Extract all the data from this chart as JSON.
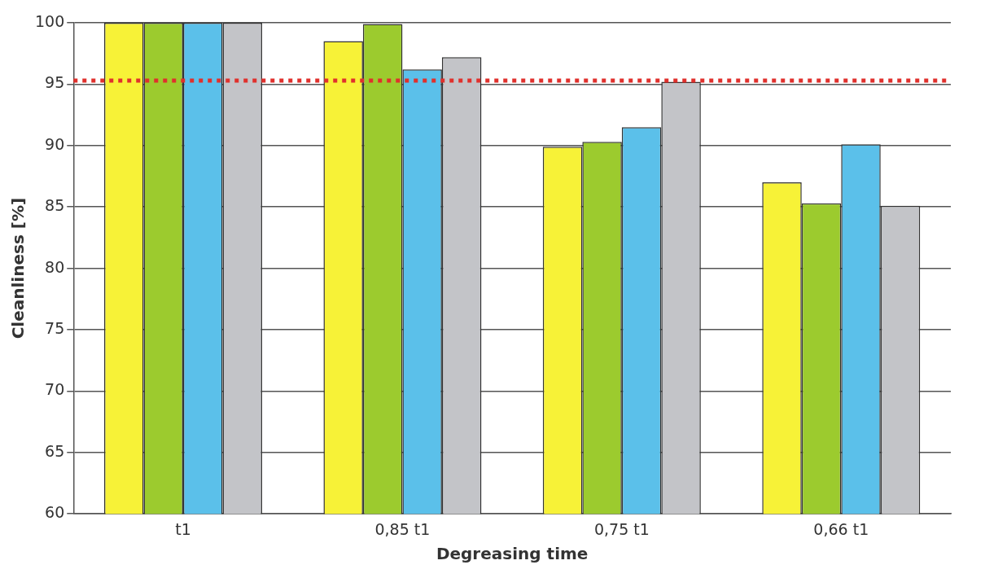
{
  "chart_data": {
    "type": "bar",
    "xlabel": "Degreasing time",
    "ylabel": "Cleanliness [%]",
    "categories": [
      "t1",
      "0,85 t1",
      "0,75 t1",
      "0,66 t1"
    ],
    "series": [
      {
        "color": "#f7f237",
        "values": [
          100,
          98.5,
          89.9,
          87.0
        ]
      },
      {
        "color": "#9ccb2e",
        "values": [
          100,
          99.9,
          90.3,
          85.3
        ]
      },
      {
        "color": "#5bc0ea",
        "values": [
          100,
          96.2,
          91.5,
          90.1
        ]
      },
      {
        "color": "#c3c4c8",
        "values": [
          100,
          97.2,
          95.2,
          85.1
        ]
      }
    ],
    "ylim": [
      60,
      100
    ],
    "yticks": [
      60,
      65,
      70,
      75,
      80,
      85,
      90,
      95,
      100
    ],
    "grid": "y",
    "legend": false,
    "ref_lines": [
      {
        "axis": "y",
        "value": 95.3,
        "color": "#e0302c",
        "line_style": "dotted"
      }
    ]
  }
}
